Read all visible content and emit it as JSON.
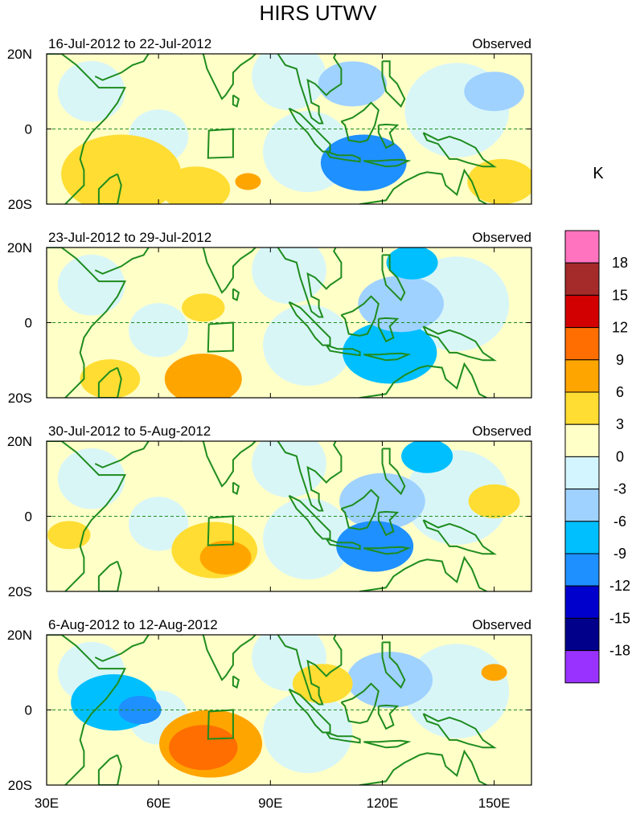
{
  "title": "HIRS UTWV",
  "colorbar": {
    "unit": "K",
    "levels": [
      "18",
      "15",
      "12",
      "9",
      "6",
      "3",
      "0",
      "-3",
      "-6",
      "-9",
      "-12",
      "-15",
      "-18"
    ],
    "colors": [
      "#ff73bf",
      "#a52a2a",
      "#d20000",
      "#ff6e00",
      "#ffa500",
      "#ffdd33",
      "#ffffc8",
      "#d2f5ff",
      "#a0d2ff",
      "#00bfff",
      "#1e90ff",
      "#0000cd",
      "#00008b",
      "#9932ff"
    ]
  },
  "axes": {
    "x_ticks": [
      "30E",
      "60E",
      "90E",
      "120E",
      "150E"
    ],
    "x_values": [
      30,
      60,
      90,
      120,
      150
    ],
    "xlim": [
      30,
      160
    ],
    "y_ticks": [
      "20N",
      "0",
      "20S"
    ],
    "y_values": [
      20,
      0,
      -20
    ],
    "ylim": [
      -20,
      20
    ],
    "equator_dashed": true
  },
  "chart_data": [
    {
      "type": "heatmap",
      "period": "16-Jul-2012 to 22-Jul-2012",
      "label": "Observed",
      "anomalies": [
        {
          "lon": 50,
          "lat": -12,
          "value": 3,
          "r": 14
        },
        {
          "lon": 70,
          "lat": -16,
          "value": 3,
          "r": 8
        },
        {
          "lon": 84,
          "lat": -14,
          "value": 6,
          "r": 3
        },
        {
          "lon": 115,
          "lat": -9,
          "value": -9,
          "r": 10
        },
        {
          "lon": 112,
          "lat": 12,
          "value": -3,
          "r": 8
        },
        {
          "lon": 152,
          "lat": -14,
          "value": 3,
          "r": 8
        },
        {
          "lon": 150,
          "lat": 10,
          "value": -3,
          "r": 7
        }
      ]
    },
    {
      "type": "heatmap",
      "period": "23-Jul-2012 to 29-Jul-2012",
      "label": "Observed",
      "anomalies": [
        {
          "lon": 72,
          "lat": -15,
          "value": 6,
          "r": 9
        },
        {
          "lon": 47,
          "lat": -15,
          "value": 3,
          "r": 7
        },
        {
          "lon": 72,
          "lat": 4,
          "value": 3,
          "r": 5
        },
        {
          "lon": 122,
          "lat": -8,
          "value": -6,
          "r": 11
        },
        {
          "lon": 128,
          "lat": 16,
          "value": -6,
          "r": 6
        },
        {
          "lon": 125,
          "lat": 5,
          "value": -3,
          "r": 10
        }
      ]
    },
    {
      "type": "heatmap",
      "period": "30-Jul-2012 to 5-Aug-2012",
      "label": "Observed",
      "anomalies": [
        {
          "lon": 78,
          "lat": -11,
          "value": 6,
          "r": 6
        },
        {
          "lon": 75,
          "lat": -9,
          "value": 3,
          "r": 10
        },
        {
          "lon": 36,
          "lat": -5,
          "value": 3,
          "r": 5
        },
        {
          "lon": 118,
          "lat": -8,
          "value": -9,
          "r": 9
        },
        {
          "lon": 132,
          "lat": 16,
          "value": -6,
          "r": 6
        },
        {
          "lon": 120,
          "lat": 4,
          "value": -3,
          "r": 10
        },
        {
          "lon": 150,
          "lat": 4,
          "value": 3,
          "r": 6
        }
      ]
    },
    {
      "type": "heatmap",
      "period": "6-Aug-2012 to 12-Aug-2012",
      "label": "Observed",
      "anomalies": [
        {
          "lon": 72,
          "lat": -10,
          "value": 9,
          "r": 8
        },
        {
          "lon": 74,
          "lat": -9,
          "value": 6,
          "r": 12
        },
        {
          "lon": 55,
          "lat": 0,
          "value": -9,
          "r": 5
        },
        {
          "lon": 48,
          "lat": 2,
          "value": -6,
          "r": 10
        },
        {
          "lon": 104,
          "lat": 7,
          "value": 3,
          "r": 7
        },
        {
          "lon": 122,
          "lat": 8,
          "value": -3,
          "r": 10
        },
        {
          "lon": 150,
          "lat": 10,
          "value": 6,
          "r": 3
        }
      ]
    }
  ]
}
